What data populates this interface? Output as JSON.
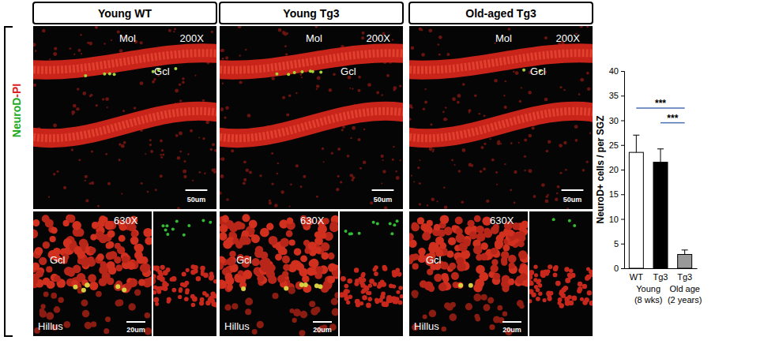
{
  "figure": {
    "row_label": {
      "green": "NeuroD",
      "red": "-PI"
    },
    "panels": [
      {
        "title": "Young WT",
        "top": {
          "magnification": "200X",
          "labels": [
            "Mol",
            "Gcl"
          ],
          "scale_bar": "50um"
        },
        "bottom": {
          "magnification": "630X",
          "labels": [
            "Gcl",
            "Hillus"
          ],
          "scale_bar": "20um"
        }
      },
      {
        "title": "Young Tg3",
        "top": {
          "magnification": "200X",
          "labels": [
            "Mol",
            "Gcl"
          ],
          "scale_bar": "50um"
        },
        "bottom": {
          "magnification": "630X",
          "labels": [
            "Gcl",
            "Hillus"
          ],
          "scale_bar": "20um"
        }
      },
      {
        "title": "Old-aged Tg3",
        "top": {
          "magnification": "200X",
          "labels": [
            "Mol",
            "Gcl"
          ],
          "scale_bar": "50um"
        },
        "bottom": {
          "magnification": "630X",
          "labels": [
            "Gcl",
            "Hillus"
          ],
          "scale_bar": "20um"
        }
      }
    ]
  },
  "chart_data": {
    "type": "bar",
    "ylabel": "NeuroD+ cells / per SGZ",
    "categories": [
      "WT",
      "Tg3",
      "Tg3"
    ],
    "values": [
      23.5,
      21.5,
      2.8
    ],
    "errors": [
      3.5,
      2.7,
      0.9
    ],
    "colors": [
      "#ffffff",
      "#000000",
      "#999999"
    ],
    "groups": [
      {
        "label": "Young",
        "note": "(8 wks)",
        "categories": [
          0,
          1
        ]
      },
      {
        "label": "Old age",
        "note": "(2 years)",
        "categories": [
          2
        ]
      }
    ],
    "annotations": [
      {
        "text": "***",
        "from": 0,
        "to": 2,
        "y": 32.5
      },
      {
        "text": "***",
        "from": 1,
        "to": 2,
        "y": 29.5
      }
    ],
    "ylim": [
      0,
      40
    ],
    "yticks": [
      0,
      5,
      10,
      15,
      20,
      25,
      30,
      35,
      40
    ],
    "grid": false
  }
}
